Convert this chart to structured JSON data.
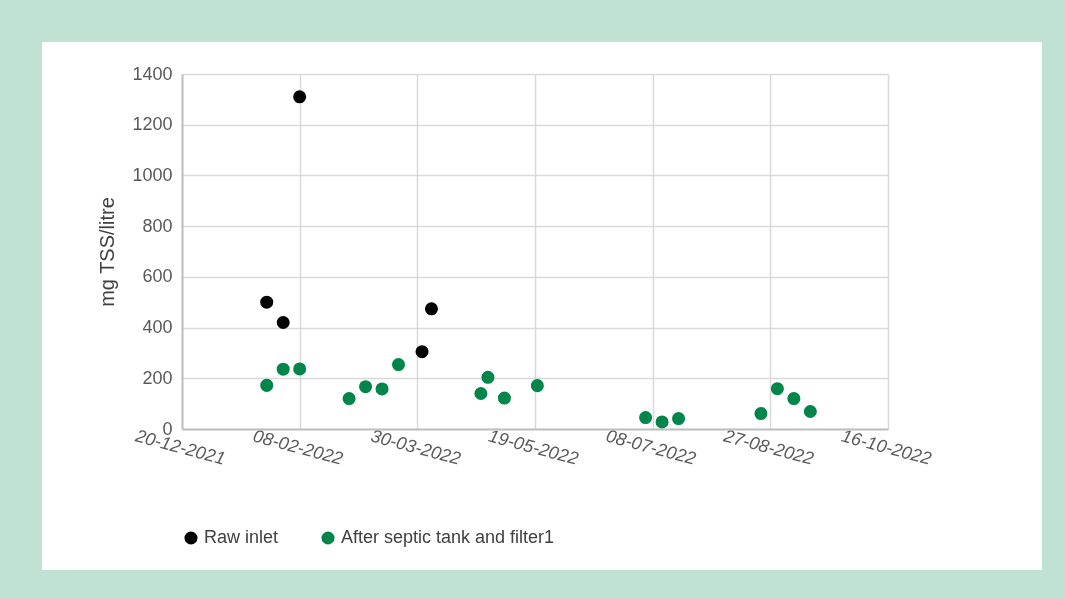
{
  "chart_data": {
    "type": "scatter",
    "ylabel": "mg TSS/litre",
    "marker": "circle",
    "grid": true,
    "legend": "bottom",
    "xlim": [
      "2021-12-20",
      "2022-10-16"
    ],
    "xticks": [
      {
        "value": "2021-12-20",
        "label": "20-12-2021"
      },
      {
        "value": "2022-02-08",
        "label": "08-02-2022"
      },
      {
        "value": "2022-03-30",
        "label": "30-03-2022"
      },
      {
        "value": "2022-05-19",
        "label": "19-05-2022"
      },
      {
        "value": "2022-07-08",
        "label": "08-07-2022"
      },
      {
        "value": "2022-08-27",
        "label": "27-08-2022"
      },
      {
        "value": "2022-10-16",
        "label": "16-10-2022"
      }
    ],
    "ylim": [
      0,
      1400
    ],
    "yticks": [
      0,
      200,
      400,
      600,
      800,
      1000,
      1200,
      1400
    ],
    "series": [
      {
        "name": "Raw inlet",
        "color": "#000000",
        "x": [
          "2022-01-25",
          "2022-02-01",
          "2022-02-08",
          "2022-04-01",
          "2022-04-05"
        ],
        "values": [
          500,
          420,
          1310,
          305,
          474
        ]
      },
      {
        "name": "After septic tank and filter1",
        "color": "#00864a",
        "x": [
          "2022-01-25",
          "2022-02-01",
          "2022-02-08",
          "2022-03-01",
          "2022-03-08",
          "2022-03-15",
          "2022-03-22",
          "2022-04-26",
          "2022-04-29",
          "2022-05-06",
          "2022-05-20",
          "2022-07-05",
          "2022-07-12",
          "2022-07-19",
          "2022-08-23",
          "2022-08-30",
          "2022-09-06",
          "2022-09-13"
        ],
        "values": [
          172,
          236,
          237,
          120,
          167,
          158,
          254,
          140,
          204,
          122,
          171,
          45,
          28,
          41,
          61,
          159,
          120,
          69
        ]
      }
    ]
  }
}
